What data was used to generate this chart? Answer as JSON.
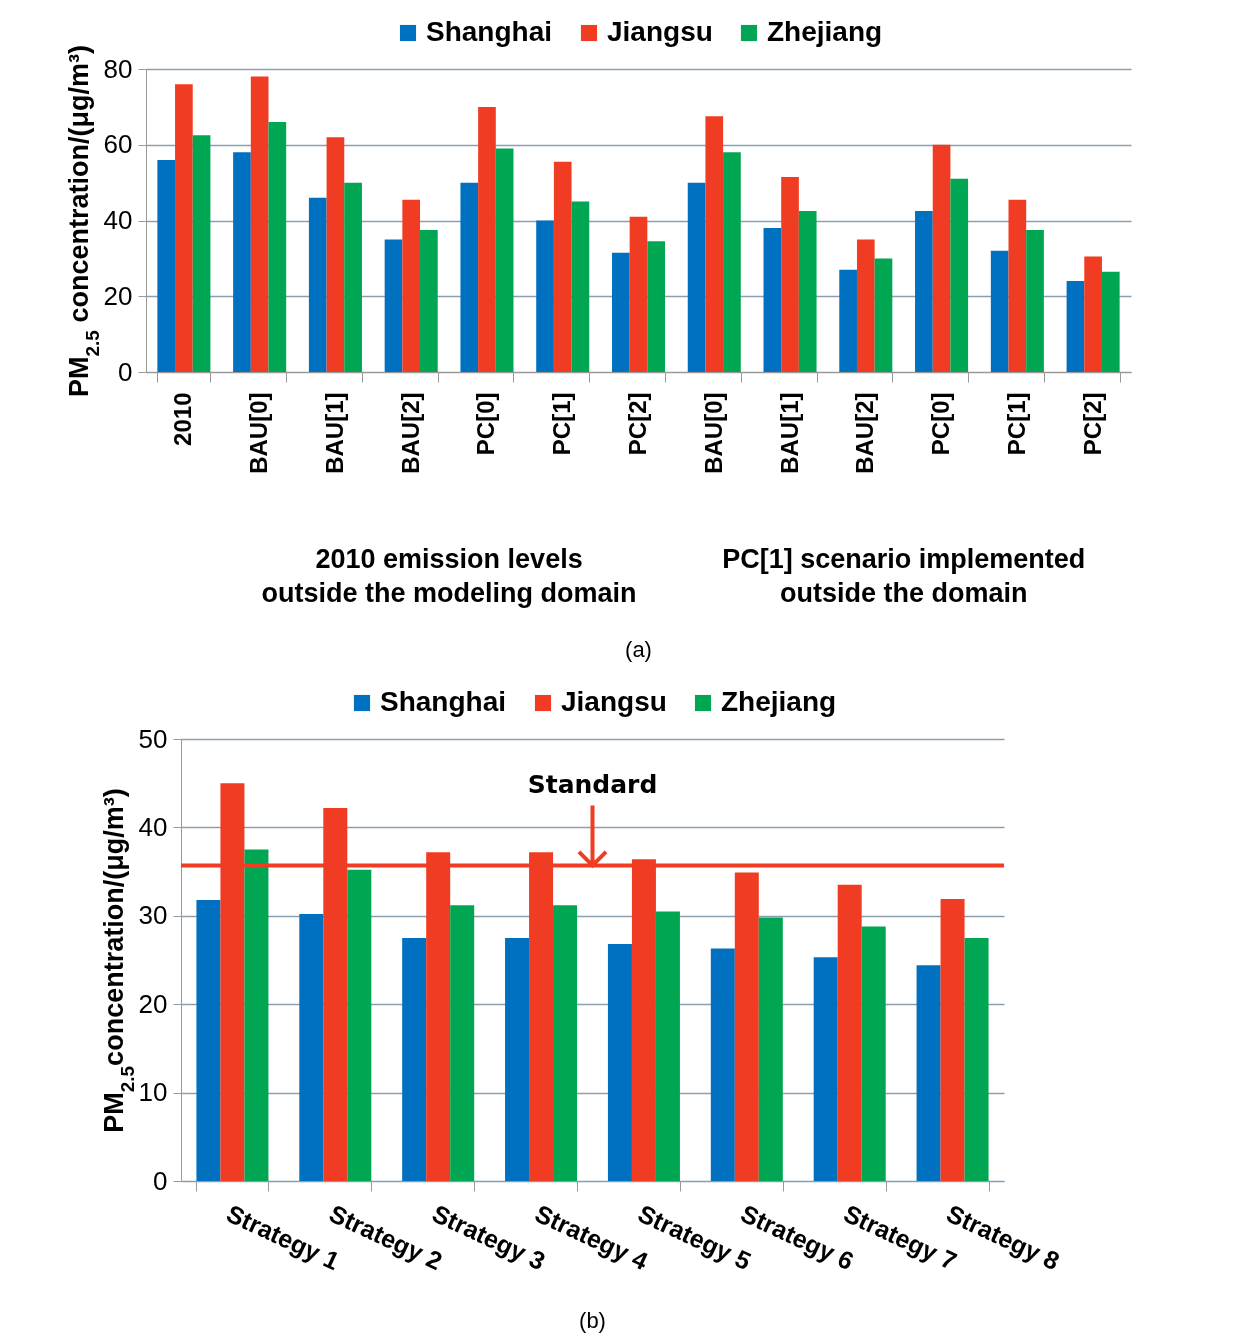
{
  "chart_data": [
    {
      "type": "bar",
      "ylabel": "PM$_{2.5}$ concentration/(μg/m³)",
      "categories": [
        "2010",
        "BAU[0]",
        "BAU[1]",
        "BAU[2]",
        "PC[0]",
        "PC[1]",
        "PC[2]",
        "BAU[0]",
        "BAU[1]",
        "BAU[2]",
        "PC[0]",
        "PC[1]",
        "PC[2]"
      ],
      "series": [
        {
          "name": "Shanghai",
          "color": "#0070c0",
          "values": [
            56,
            58,
            46,
            35,
            50,
            40,
            31.5,
            50,
            38,
            27,
            42.5,
            32,
            24
          ]
        },
        {
          "name": "Jiangsu",
          "color": "#f03c22",
          "values": [
            76,
            78,
            62,
            45.5,
            70,
            55.5,
            41,
            67.5,
            51.5,
            35,
            60,
            45.5,
            30.5
          ]
        },
        {
          "name": "Zhejiang",
          "color": "#00a651",
          "values": [
            62.5,
            66,
            50,
            37.5,
            59,
            45,
            34.5,
            58,
            42.5,
            30,
            51,
            37.5,
            26.5
          ]
        }
      ],
      "ylim": [
        0,
        80
      ],
      "yticks": [
        0,
        20,
        40,
        60,
        80
      ],
      "grid": "y",
      "legend": "top",
      "annotations": [
        "2010 emission levels outside the modeling domain",
        "PC[1] scenario implemented outside the domain",
        "(a)"
      ]
    },
    {
      "type": "bar",
      "ylabel": "PM$_{2.5}$concentration/(μg/m³)",
      "categories": [
        "Strategy 1",
        "Strategy 2",
        "Strategy 3",
        "Strategy 4",
        "Strategy 5",
        "Strategy 6",
        "Strategy 7",
        "Strategy 8"
      ],
      "series": [
        {
          "name": "Shanghai",
          "color": "#0070c0",
          "values": [
            31.8,
            30.2,
            27.5,
            27.5,
            26.8,
            26.3,
            25.3,
            24.4
          ]
        },
        {
          "name": "Jiangsu",
          "color": "#f03c22",
          "values": [
            45,
            42.2,
            37.2,
            37.2,
            36.4,
            34.9,
            33.5,
            31.9
          ]
        },
        {
          "name": "Zhejiang",
          "color": "#00a651",
          "values": [
            37.5,
            35.2,
            31.2,
            31.2,
            30.5,
            29.8,
            28.8,
            27.5
          ]
        }
      ],
      "ylim": [
        0,
        50
      ],
      "yticks": [
        0,
        10,
        20,
        30,
        40,
        50
      ],
      "grid": "y",
      "legend": "top",
      "ref_lines": [
        {
          "axis": "y",
          "value": 35.7,
          "label": "Standard",
          "color": "#f03c22"
        }
      ],
      "annotations": [
        "(b)"
      ]
    }
  ]
}
